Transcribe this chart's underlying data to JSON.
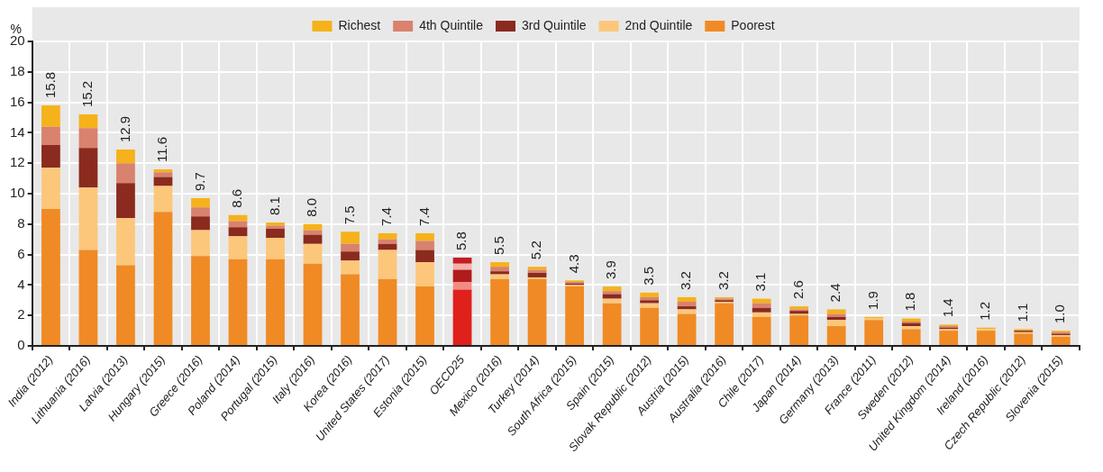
{
  "chart_data": {
    "type": "bar",
    "stacked": true,
    "ylabel": "%",
    "categories": [
      "India (2012)",
      "Lithuania (2016)",
      "Latvia (2013)",
      "Hungary (2015)",
      "Greece (2016)",
      "Poland (2014)",
      "Portugal (2015)",
      "Italy (2016)",
      "Korea (2016)",
      "United States (2017)",
      "Estonia (2015)",
      "OECD25",
      "Mexico (2016)",
      "Turkey (2014)",
      "South Africa (2015)",
      "Spain (2015)",
      "Slovak Republic (2012)",
      "Austria (2015)",
      "Australia (2016)",
      "Chile (2017)",
      "Japan (2014)",
      "Germany (2013)",
      "France (2011)",
      "Sweden (2012)",
      "United Kingdom (2014)",
      "Ireland (2016)",
      "Czech Republic (2012)",
      "Slovenia (2015)"
    ],
    "series": [
      {
        "name": "Poorest",
        "color": "#f08a24",
        "colors": [
          "#f08a24",
          "#f08a24",
          "#f08a24",
          "#f08a24",
          "#f08a24",
          "#f08a24",
          "#f08a24",
          "#f08a24",
          "#f08a24",
          "#f08a24",
          "#f08a24",
          "#e0201b",
          "#f08a24",
          "#f08a24",
          "#f08a24",
          "#f08a24",
          "#f08a24",
          "#f08a24",
          "#f08a24",
          "#f08a24",
          "#f08a24",
          "#f08a24",
          "#f08a24",
          "#f08a24",
          "#f08a24",
          "#f08a24",
          "#f08a24",
          "#f08a24"
        ],
        "values": [
          9.0,
          6.3,
          5.3,
          8.8,
          5.9,
          5.7,
          5.7,
          5.4,
          4.7,
          4.4,
          3.9,
          3.7,
          4.4,
          4.4,
          3.9,
          2.8,
          2.5,
          2.1,
          2.8,
          1.9,
          2.0,
          1.3,
          1.7,
          1.1,
          1.0,
          1.0,
          0.8,
          0.6
        ]
      },
      {
        "name": "2nd Quintile",
        "color": "#fcc77a",
        "colors": [
          "#fcc77a",
          "#fcc77a",
          "#fcc77a",
          "#fcc77a",
          "#fcc77a",
          "#fcc77a",
          "#fcc77a",
          "#fcc77a",
          "#fcc77a",
          "#fcc77a",
          "#fcc77a",
          "#f28b82",
          "#fcc77a",
          "#fcc77a",
          "#fcc77a",
          "#fcc77a",
          "#fcc77a",
          "#fcc77a",
          "#fcc77a",
          "#fcc77a",
          "#fcc77a",
          "#fcc77a",
          "#fcc77a",
          "#fcc77a",
          "#fcc77a",
          "#fcc77a",
          "#fcc77a",
          "#fcc77a"
        ],
        "values": [
          2.7,
          4.1,
          3.1,
          1.7,
          1.7,
          1.5,
          1.4,
          1.3,
          0.9,
          1.9,
          1.6,
          0.5,
          0.3,
          0.1,
          0.1,
          0.3,
          0.3,
          0.3,
          0.1,
          0.3,
          0.1,
          0.4,
          0.1,
          0.2,
          0.1,
          0.1,
          0.1,
          0.1
        ]
      },
      {
        "name": "3rd Quintile",
        "color": "#8b2a1e",
        "colors": [
          "#8b2a1e",
          "#8b2a1e",
          "#8b2a1e",
          "#8b2a1e",
          "#8b2a1e",
          "#8b2a1e",
          "#8b2a1e",
          "#8b2a1e",
          "#8b2a1e",
          "#8b2a1e",
          "#8b2a1e",
          "#b01c1c",
          "#8b2a1e",
          "#8b2a1e",
          "#8b2a1e",
          "#8b2a1e",
          "#8b2a1e",
          "#8b2a1e",
          "#8b2a1e",
          "#8b2a1e",
          "#8b2a1e",
          "#8b2a1e",
          "#8b2a1e",
          "#8b2a1e",
          "#8b2a1e",
          "#8b2a1e",
          "#8b2a1e",
          "#8b2a1e"
        ],
        "values": [
          1.5,
          2.6,
          2.3,
          0.6,
          0.9,
          0.6,
          0.6,
          0.6,
          0.6,
          0.4,
          0.8,
          0.8,
          0.2,
          0.3,
          0.1,
          0.3,
          0.2,
          0.2,
          0.1,
          0.3,
          0.2,
          0.2,
          0.0,
          0.2,
          0.1,
          0.0,
          0.1,
          0.1
        ]
      },
      {
        "name": "4th Quintile",
        "color": "#d9826e",
        "colors": [
          "#d9826e",
          "#d9826e",
          "#d9826e",
          "#d9826e",
          "#d9826e",
          "#d9826e",
          "#d9826e",
          "#d9826e",
          "#d9826e",
          "#d9826e",
          "#d9826e",
          "#f7b0a8",
          "#d9826e",
          "#d9826e",
          "#d9826e",
          "#d9826e",
          "#d9826e",
          "#d9826e",
          "#d9826e",
          "#d9826e",
          "#d9826e",
          "#d9826e",
          "#d9826e",
          "#d9826e",
          "#d9826e",
          "#d9826e",
          "#d9826e",
          "#d9826e"
        ],
        "values": [
          1.2,
          1.3,
          1.3,
          0.3,
          0.6,
          0.4,
          0.2,
          0.3,
          0.5,
          0.3,
          0.6,
          0.4,
          0.3,
          0.2,
          0.1,
          0.2,
          0.2,
          0.3,
          0.1,
          0.3,
          0.1,
          0.2,
          0.0,
          0.1,
          0.1,
          0.0,
          0.0,
          0.1
        ]
      },
      {
        "name": "Richest",
        "color": "#f5b21a",
        "colors": [
          "#f5b21a",
          "#f5b21a",
          "#f5b21a",
          "#f5b21a",
          "#f5b21a",
          "#f5b21a",
          "#f5b21a",
          "#f5b21a",
          "#f5b21a",
          "#f5b21a",
          "#f5b21a",
          "#c41e24",
          "#f5b21a",
          "#f5b21a",
          "#f5b21a",
          "#f5b21a",
          "#f5b21a",
          "#f5b21a",
          "#f5b21a",
          "#f5b21a",
          "#f5b21a",
          "#f5b21a",
          "#f5b21a",
          "#f5b21a",
          "#f5b21a",
          "#f5b21a",
          "#f5b21a",
          "#f5b21a"
        ],
        "values": [
          1.4,
          0.9,
          0.9,
          0.2,
          0.6,
          0.4,
          0.2,
          0.4,
          0.8,
          0.4,
          0.5,
          0.4,
          0.3,
          0.2,
          0.1,
          0.3,
          0.3,
          0.3,
          0.1,
          0.3,
          0.2,
          0.3,
          0.1,
          0.2,
          0.1,
          0.1,
          0.1,
          0.1
        ]
      }
    ],
    "totals": [
      "15.8",
      "15.2",
      "12.9",
      "11.6",
      "9.7",
      "8.6",
      "8.1",
      "8.0",
      "7.5",
      "7.4",
      "7.4",
      "5.8",
      "5.5",
      "5.2",
      "4.3",
      "3.9",
      "3.5",
      "3.2",
      "3.2",
      "3.1",
      "2.6",
      "2.4",
      "1.9",
      "1.8",
      "1.4",
      "1.2",
      "1.1",
      "1.0"
    ],
    "ylim": [
      0,
      20
    ],
    "yticks": [
      0,
      2,
      4,
      6,
      8,
      10,
      12,
      14,
      16,
      18,
      20
    ],
    "grid": true,
    "legend": "top"
  }
}
